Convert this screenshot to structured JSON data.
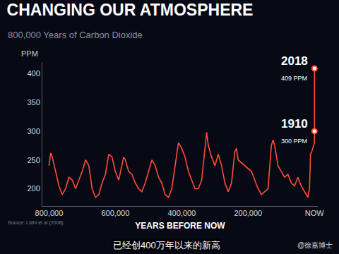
{
  "chart_data": {
    "type": "line",
    "title": "CHANGING OUR ATMOSPHERE",
    "subtitle": "800,000 Years of Carbon Dioxide",
    "ylabel": "PPM",
    "xlabel": "YEARS BEFORE NOW",
    "color": "#ff4b3a",
    "grid": false,
    "x": [
      800000,
      795000,
      790000,
      780000,
      770000,
      760000,
      750000,
      740000,
      730000,
      720000,
      710000,
      700000,
      690000,
      680000,
      670000,
      660000,
      650000,
      640000,
      630000,
      620000,
      610000,
      600000,
      590000,
      580000,
      575000,
      570000,
      560000,
      550000,
      540000,
      530000,
      520000,
      510000,
      500000,
      490000,
      480000,
      470000,
      460000,
      450000,
      440000,
      430000,
      420000,
      410000,
      400000,
      390000,
      380000,
      370000,
      360000,
      350000,
      340000,
      330000,
      325000,
      320000,
      310000,
      300000,
      290000,
      280000,
      270000,
      260000,
      250000,
      240000,
      235000,
      230000,
      220000,
      210000,
      200000,
      190000,
      180000,
      170000,
      160000,
      150000,
      140000,
      130000,
      125000,
      120000,
      110000,
      100000,
      90000,
      80000,
      70000,
      60000,
      50000,
      40000,
      30000,
      20000,
      15000,
      12000,
      8000,
      2000,
      200,
      108,
      0
    ],
    "values": [
      240,
      262,
      255,
      230,
      205,
      190,
      200,
      220,
      215,
      200,
      215,
      230,
      250,
      240,
      200,
      185,
      190,
      210,
      225,
      260,
      255,
      230,
      215,
      240,
      255,
      250,
      230,
      225,
      210,
      200,
      195,
      210,
      230,
      250,
      240,
      220,
      210,
      190,
      185,
      200,
      240,
      280,
      270,
      255,
      230,
      215,
      200,
      200,
      215,
      270,
      298,
      275,
      255,
      240,
      260,
      240,
      210,
      195,
      210,
      265,
      270,
      250,
      245,
      240,
      235,
      230,
      215,
      200,
      190,
      195,
      200,
      275,
      285,
      275,
      240,
      230,
      220,
      225,
      210,
      205,
      220,
      205,
      195,
      185,
      200,
      260,
      265,
      278,
      280,
      300,
      409
    ],
    "xlim": [
      820000,
      -10000
    ],
    "ylim": [
      170,
      420
    ],
    "xticks": [
      {
        "value": 800000,
        "label": "800,000"
      },
      {
        "value": 600000,
        "label": "600,000"
      },
      {
        "value": 400000,
        "label": "400,000"
      },
      {
        "value": 200000,
        "label": "200,000"
      },
      {
        "value": 0,
        "label": "NOW"
      }
    ],
    "yticks": [
      200,
      250,
      300,
      350,
      400
    ],
    "highlights": [
      {
        "x": 0,
        "value": 409,
        "year": "2018",
        "label": "409 PPM"
      },
      {
        "x": 108,
        "value": 300,
        "year": "1910",
        "label": "300 PPM"
      }
    ],
    "annotations": [
      "Source: Lüthi et al (2008)",
      "已经创400万年以来的新高",
      "@徐嘉博士"
    ]
  }
}
